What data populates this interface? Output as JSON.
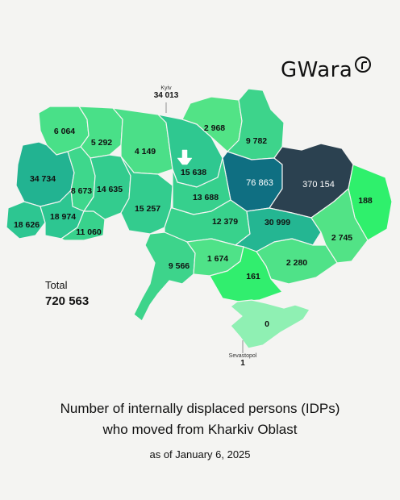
{
  "brand": {
    "name": "Gwara",
    "wordmark": "GWara",
    "mark": "r-circle"
  },
  "title_line1": "Number of internally displaced persons (IDPs)",
  "title_line2": "who moved from Kharkiv Oblast",
  "subtitle": "as of January 6, 2025",
  "total": {
    "label": "Total",
    "value": "720 563"
  },
  "cities": [
    {
      "name": "Kyiv",
      "value": "34 013"
    },
    {
      "name": "Sevastopol",
      "value": "1"
    }
  ],
  "colors": {
    "background": "#f4f4f2",
    "scale_low": "#52e38a",
    "scale_mid": "#1fb592",
    "scale_high": "#0f6f82",
    "scale_max": "#2b4150",
    "crimea": "#8ff0b3"
  },
  "regions": [
    {
      "name": "Volyn",
      "value": "6 064",
      "color": "#49e088"
    },
    {
      "name": "Rivne",
      "value": "5 292",
      "color": "#49e088"
    },
    {
      "name": "Zhytomyr",
      "value": "4 149",
      "color": "#4bdf88"
    },
    {
      "name": "Kyiv Oblast",
      "value": "15 638",
      "color": "#2fc890"
    },
    {
      "name": "Chernihiv",
      "value": "2 968",
      "color": "#52e386"
    },
    {
      "name": "Sumy",
      "value": "9 782",
      "color": "#3dd48b"
    },
    {
      "name": "Poltava",
      "value": "76 863",
      "color": "#0f6f82"
    },
    {
      "name": "Kharkiv",
      "value": "370 154",
      "color": "#2b4150"
    },
    {
      "name": "Luhansk",
      "value": "188",
      "color": "#2ff06c"
    },
    {
      "name": "Lviv",
      "value": "34 734",
      "color": "#22b391"
    },
    {
      "name": "Ternopil",
      "value": "8 673",
      "color": "#3ed78c"
    },
    {
      "name": "Khmelnytskyi",
      "value": "14 635",
      "color": "#33cc8e"
    },
    {
      "name": "Vinnytsia",
      "value": "15 257",
      "color": "#33cc8e"
    },
    {
      "name": "Cherkasy",
      "value": "13 688",
      "color": "#36d08d"
    },
    {
      "name": "Zakarpattia",
      "value": "18 626",
      "color": "#2dc691"
    },
    {
      "name": "Ivano-Frankivsk",
      "value": "18 974",
      "color": "#2dc691"
    },
    {
      "name": "Chernivtsi",
      "value": "11 060",
      "color": "#38d28c"
    },
    {
      "name": "Kirovohrad",
      "value": "12 379",
      "color": "#38d28c"
    },
    {
      "name": "Dnipropetrovsk",
      "value": "30 999",
      "color": "#24b692"
    },
    {
      "name": "Donetsk",
      "value": "2 745",
      "color": "#52e386"
    },
    {
      "name": "Odesa",
      "value": "9 566",
      "color": "#3dd48b"
    },
    {
      "name": "Mykolaiv",
      "value": "1 674",
      "color": "#4fe288"
    },
    {
      "name": "Zaporizhzhia",
      "value": "2 280",
      "color": "#4fe288"
    },
    {
      "name": "Kherson",
      "value": "161",
      "color": "#31ee6e"
    },
    {
      "name": "Crimea",
      "value": "0",
      "color": "#8ff0b3"
    }
  ]
}
